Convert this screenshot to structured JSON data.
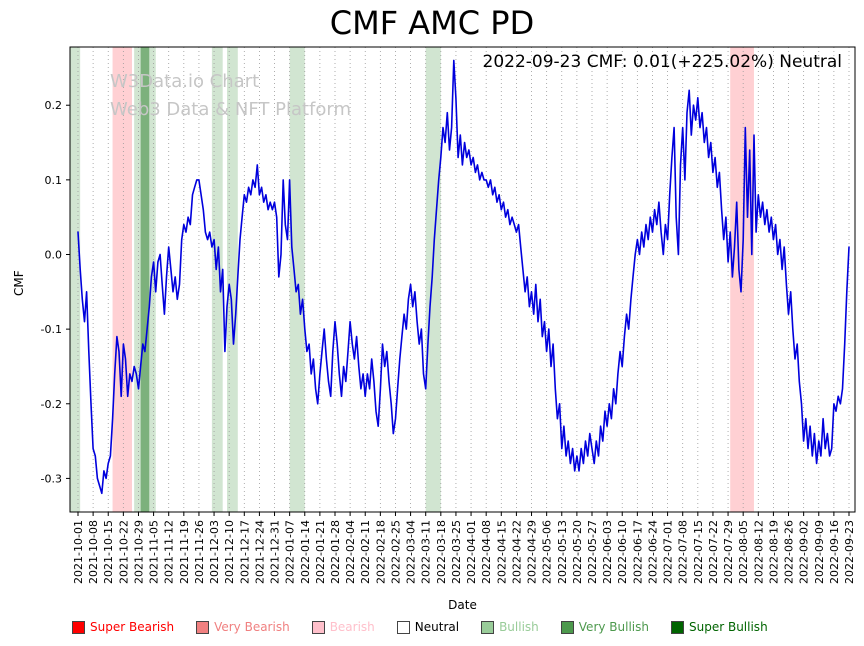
{
  "title": "CMF AMC PD",
  "annotation": "2022-09-23 CMF: 0.01(+225.02%) Neutral",
  "watermark": {
    "line1": "W3Data.io Chart",
    "line2": "Web3 Data & NFT Platform"
  },
  "axes": {
    "x_label": "Date",
    "y_label": "CMF"
  },
  "chart_data": {
    "type": "line",
    "title": "CMF AMC PD",
    "xlabel": "Date",
    "ylabel": "CMF",
    "ylim": [
      -0.345,
      0.278
    ],
    "grid": "vertical-dotted",
    "line_color": "#0000dd",
    "x_start_date": "2021-10-01",
    "x_end_date": "2022-09-23",
    "x_tick_labels": [
      "2021-10-01",
      "2021-10-08",
      "2021-10-15",
      "2021-10-22",
      "2021-10-29",
      "2021-11-05",
      "2021-11-12",
      "2021-11-19",
      "2021-11-26",
      "2021-12-03",
      "2021-12-10",
      "2021-12-17",
      "2021-12-24",
      "2021-12-31",
      "2022-01-07",
      "2022-01-14",
      "2022-01-21",
      "2022-01-28",
      "2022-02-04",
      "2022-02-11",
      "2022-02-18",
      "2022-02-25",
      "2022-03-04",
      "2022-03-11",
      "2022-03-18",
      "2022-03-25",
      "2022-04-01",
      "2022-04-08",
      "2022-04-15",
      "2022-04-22",
      "2022-04-29",
      "2022-05-06",
      "2022-05-13",
      "2022-05-20",
      "2022-05-27",
      "2022-06-03",
      "2022-06-10",
      "2022-06-17",
      "2022-06-24",
      "2022-07-01",
      "2022-07-08",
      "2022-07-15",
      "2022-07-22",
      "2022-07-29",
      "2022-08-05",
      "2022-08-12",
      "2022-08-19",
      "2022-08-26",
      "2022-09-02",
      "2022-09-09",
      "2022-09-16",
      "2022-09-23"
    ],
    "y_tick_values": [
      0.2,
      0.1,
      0.0,
      -0.1,
      -0.2,
      -0.3
    ],
    "y_tick_labels": [
      "0.2",
      "0.1",
      "0.0",
      "-0.1",
      "-0.2",
      "-0.3"
    ],
    "series": [
      {
        "name": "CMF",
        "color": "#0000dd",
        "values": [
          0.03,
          -0.02,
          -0.06,
          -0.09,
          -0.05,
          -0.13,
          -0.2,
          -0.26,
          -0.27,
          -0.3,
          -0.31,
          -0.32,
          -0.29,
          -0.3,
          -0.28,
          -0.27,
          -0.22,
          -0.16,
          -0.11,
          -0.13,
          -0.19,
          -0.12,
          -0.14,
          -0.19,
          -0.16,
          -0.17,
          -0.15,
          -0.16,
          -0.18,
          -0.15,
          -0.12,
          -0.13,
          -0.1,
          -0.07,
          -0.03,
          -0.01,
          -0.05,
          -0.01,
          0.0,
          -0.04,
          -0.08,
          -0.03,
          0.01,
          -0.02,
          -0.05,
          -0.03,
          -0.06,
          -0.04,
          0.02,
          0.04,
          0.03,
          0.05,
          0.04,
          0.08,
          0.09,
          0.1,
          0.1,
          0.08,
          0.06,
          0.03,
          0.02,
          0.03,
          0.01,
          0.02,
          -0.02,
          0.01,
          -0.05,
          -0.02,
          -0.13,
          -0.07,
          -0.04,
          -0.06,
          -0.12,
          -0.08,
          -0.03,
          0.02,
          0.05,
          0.08,
          0.07,
          0.09,
          0.08,
          0.1,
          0.09,
          0.12,
          0.08,
          0.09,
          0.07,
          0.08,
          0.06,
          0.07,
          0.06,
          0.07,
          0.05,
          -0.03,
          0.0,
          0.1,
          0.04,
          0.02,
          0.1,
          0.01,
          -0.02,
          -0.05,
          -0.04,
          -0.08,
          -0.06,
          -0.1,
          -0.13,
          -0.12,
          -0.16,
          -0.14,
          -0.18,
          -0.2,
          -0.16,
          -0.13,
          -0.1,
          -0.14,
          -0.17,
          -0.19,
          -0.13,
          -0.09,
          -0.12,
          -0.16,
          -0.19,
          -0.15,
          -0.17,
          -0.13,
          -0.09,
          -0.12,
          -0.14,
          -0.11,
          -0.15,
          -0.18,
          -0.16,
          -0.19,
          -0.16,
          -0.18,
          -0.14,
          -0.17,
          -0.21,
          -0.23,
          -0.18,
          -0.12,
          -0.15,
          -0.13,
          -0.17,
          -0.2,
          -0.24,
          -0.22,
          -0.18,
          -0.14,
          -0.11,
          -0.08,
          -0.1,
          -0.06,
          -0.04,
          -0.07,
          -0.05,
          -0.09,
          -0.12,
          -0.1,
          -0.16,
          -0.18,
          -0.12,
          -0.07,
          -0.03,
          0.02,
          0.06,
          0.1,
          0.13,
          0.17,
          0.15,
          0.19,
          0.14,
          0.17,
          0.26,
          0.21,
          0.13,
          0.16,
          0.12,
          0.15,
          0.13,
          0.14,
          0.12,
          0.13,
          0.11,
          0.12,
          0.1,
          0.11,
          0.1,
          0.1,
          0.09,
          0.1,
          0.08,
          0.09,
          0.07,
          0.08,
          0.06,
          0.07,
          0.05,
          0.06,
          0.04,
          0.05,
          0.04,
          0.03,
          0.04,
          0.01,
          -0.02,
          -0.05,
          -0.03,
          -0.07,
          -0.05,
          -0.08,
          -0.04,
          -0.09,
          -0.06,
          -0.11,
          -0.09,
          -0.13,
          -0.1,
          -0.15,
          -0.12,
          -0.18,
          -0.22,
          -0.2,
          -0.26,
          -0.23,
          -0.27,
          -0.25,
          -0.28,
          -0.26,
          -0.29,
          -0.27,
          -0.29,
          -0.26,
          -0.28,
          -0.25,
          -0.27,
          -0.24,
          -0.26,
          -0.28,
          -0.25,
          -0.27,
          -0.23,
          -0.25,
          -0.21,
          -0.23,
          -0.2,
          -0.22,
          -0.18,
          -0.2,
          -0.16,
          -0.13,
          -0.15,
          -0.11,
          -0.08,
          -0.1,
          -0.06,
          -0.03,
          0.0,
          0.02,
          0.0,
          0.03,
          0.01,
          0.04,
          0.02,
          0.05,
          0.03,
          0.06,
          0.04,
          0.07,
          0.03,
          0.0,
          0.04,
          0.02,
          0.08,
          0.13,
          0.17,
          0.05,
          0.0,
          0.12,
          0.17,
          0.1,
          0.19,
          0.22,
          0.16,
          0.2,
          0.18,
          0.21,
          0.17,
          0.19,
          0.15,
          0.17,
          0.13,
          0.15,
          0.11,
          0.13,
          0.09,
          0.11,
          0.06,
          0.02,
          0.05,
          -0.01,
          0.03,
          -0.03,
          0.01,
          0.07,
          -0.02,
          -0.05,
          0.02,
          0.17,
          0.05,
          0.14,
          0.0,
          0.16,
          0.03,
          0.08,
          0.05,
          0.07,
          0.04,
          0.06,
          0.03,
          0.05,
          0.02,
          0.04,
          0.0,
          0.02,
          -0.02,
          0.01,
          -0.04,
          -0.08,
          -0.05,
          -0.1,
          -0.14,
          -0.12,
          -0.17,
          -0.2,
          -0.25,
          -0.22,
          -0.26,
          -0.23,
          -0.27,
          -0.24,
          -0.28,
          -0.25,
          -0.27,
          -0.22,
          -0.26,
          -0.24,
          -0.27,
          -0.26,
          -0.2,
          -0.21,
          -0.19,
          -0.2,
          -0.18,
          -0.12,
          -0.05,
          0.01
        ]
      }
    ],
    "bands": [
      {
        "start_day": 0,
        "end_day": 1,
        "level": "bullish"
      },
      {
        "start_day": 16,
        "end_day": 25,
        "level": "bearish"
      },
      {
        "start_day": 26,
        "end_day": 36,
        "level": "bullish"
      },
      {
        "start_day": 29,
        "end_day": 33,
        "level": "very_bullish"
      },
      {
        "start_day": 62,
        "end_day": 67,
        "level": "bullish"
      },
      {
        "start_day": 69,
        "end_day": 74,
        "level": "bullish"
      },
      {
        "start_day": 98,
        "end_day": 105,
        "level": "bullish"
      },
      {
        "start_day": 161,
        "end_day": 168,
        "level": "bullish"
      },
      {
        "start_day": 302,
        "end_day": 313,
        "level": "bearish"
      }
    ],
    "band_colors": {
      "bearish": "rgba(255,120,130,0.35)",
      "bullish": "rgba(102,170,102,0.30)",
      "very_bullish": "rgba(55,135,55,0.55)"
    },
    "latest": {
      "date": "2022-09-23",
      "value": 0.01,
      "change_pct": "+225.02%",
      "sentiment": "Neutral"
    }
  },
  "legend": {
    "items": [
      {
        "label": "Super Bearish",
        "color": "#ff0000",
        "text_color": "#ff0000"
      },
      {
        "label": "Very Bearish",
        "color": "#f08080",
        "text_color": "#f08080"
      },
      {
        "label": "Bearish",
        "color": "#ffc0cb",
        "text_color": "#ffc0cb"
      },
      {
        "label": "Neutral",
        "color": "#ffffff",
        "text_color": "#000000"
      },
      {
        "label": "Bullish",
        "color": "#99cc99",
        "text_color": "#99cc99"
      },
      {
        "label": "Very Bullish",
        "color": "#4d994d",
        "text_color": "#4d994d"
      },
      {
        "label": "Super Bullish",
        "color": "#006400",
        "text_color": "#006400"
      }
    ]
  }
}
